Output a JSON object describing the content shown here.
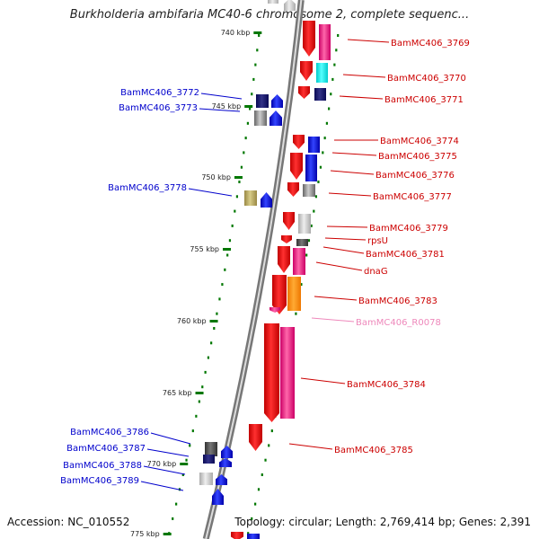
{
  "title": "Burkholderia ambifaria MC40-6 chromosome 2, complete sequenc...",
  "footer": {
    "accession": "Accession: NC_010552",
    "topology": "Topology: circular; Length: 2,769,414 bp; Genes: 2,391"
  },
  "scale": {
    "ticks": [
      "740 kbp",
      "745 kbp",
      "750 kbp",
      "755 kbp",
      "760 kbp",
      "765 kbp",
      "770 kbp",
      "775 kbp"
    ]
  },
  "colors": {
    "forward_cds": "#ff0000",
    "reverse_cds": "#0000ff",
    "ncrna": "#ff88cc",
    "tick": "#007700",
    "backbone": "#888888"
  },
  "genes_right": [
    {
      "label": "BamMC406_3769",
      "color": "#cc0000"
    },
    {
      "label": "BamMC406_3770",
      "color": "#cc0000"
    },
    {
      "label": "BamMC406_3771",
      "color": "#cc0000"
    },
    {
      "label": "BamMC406_3774",
      "color": "#cc0000"
    },
    {
      "label": "BamMC406_3775",
      "color": "#cc0000"
    },
    {
      "label": "BamMC406_3776",
      "color": "#cc0000"
    },
    {
      "label": "BamMC406_3777",
      "color": "#cc0000"
    },
    {
      "label": "BamMC406_3779",
      "color": "#cc0000"
    },
    {
      "label": "rpsU",
      "color": "#cc0000"
    },
    {
      "label": "BamMC406_3781",
      "color": "#cc0000"
    },
    {
      "label": "dnaG",
      "color": "#cc0000"
    },
    {
      "label": "BamMC406_3783",
      "color": "#cc0000"
    },
    {
      "label": "BamMC406_R0078",
      "color": "#ee88bb"
    },
    {
      "label": "BamMC406_3784",
      "color": "#cc0000"
    },
    {
      "label": "BamMC406_3785",
      "color": "#cc0000"
    }
  ],
  "genes_left": [
    {
      "label": "BamMC406_3772",
      "color": "#0000cc"
    },
    {
      "label": "BamMC406_3773",
      "color": "#0000cc"
    },
    {
      "label": "BamMC406_3778",
      "color": "#0000cc"
    },
    {
      "label": "BamMC406_3786",
      "color": "#0000cc"
    },
    {
      "label": "BamMC406_3787",
      "color": "#0000cc"
    },
    {
      "label": "BamMC406_3788",
      "color": "#0000cc"
    },
    {
      "label": "BamMC406_3789",
      "color": "#0000cc"
    }
  ]
}
